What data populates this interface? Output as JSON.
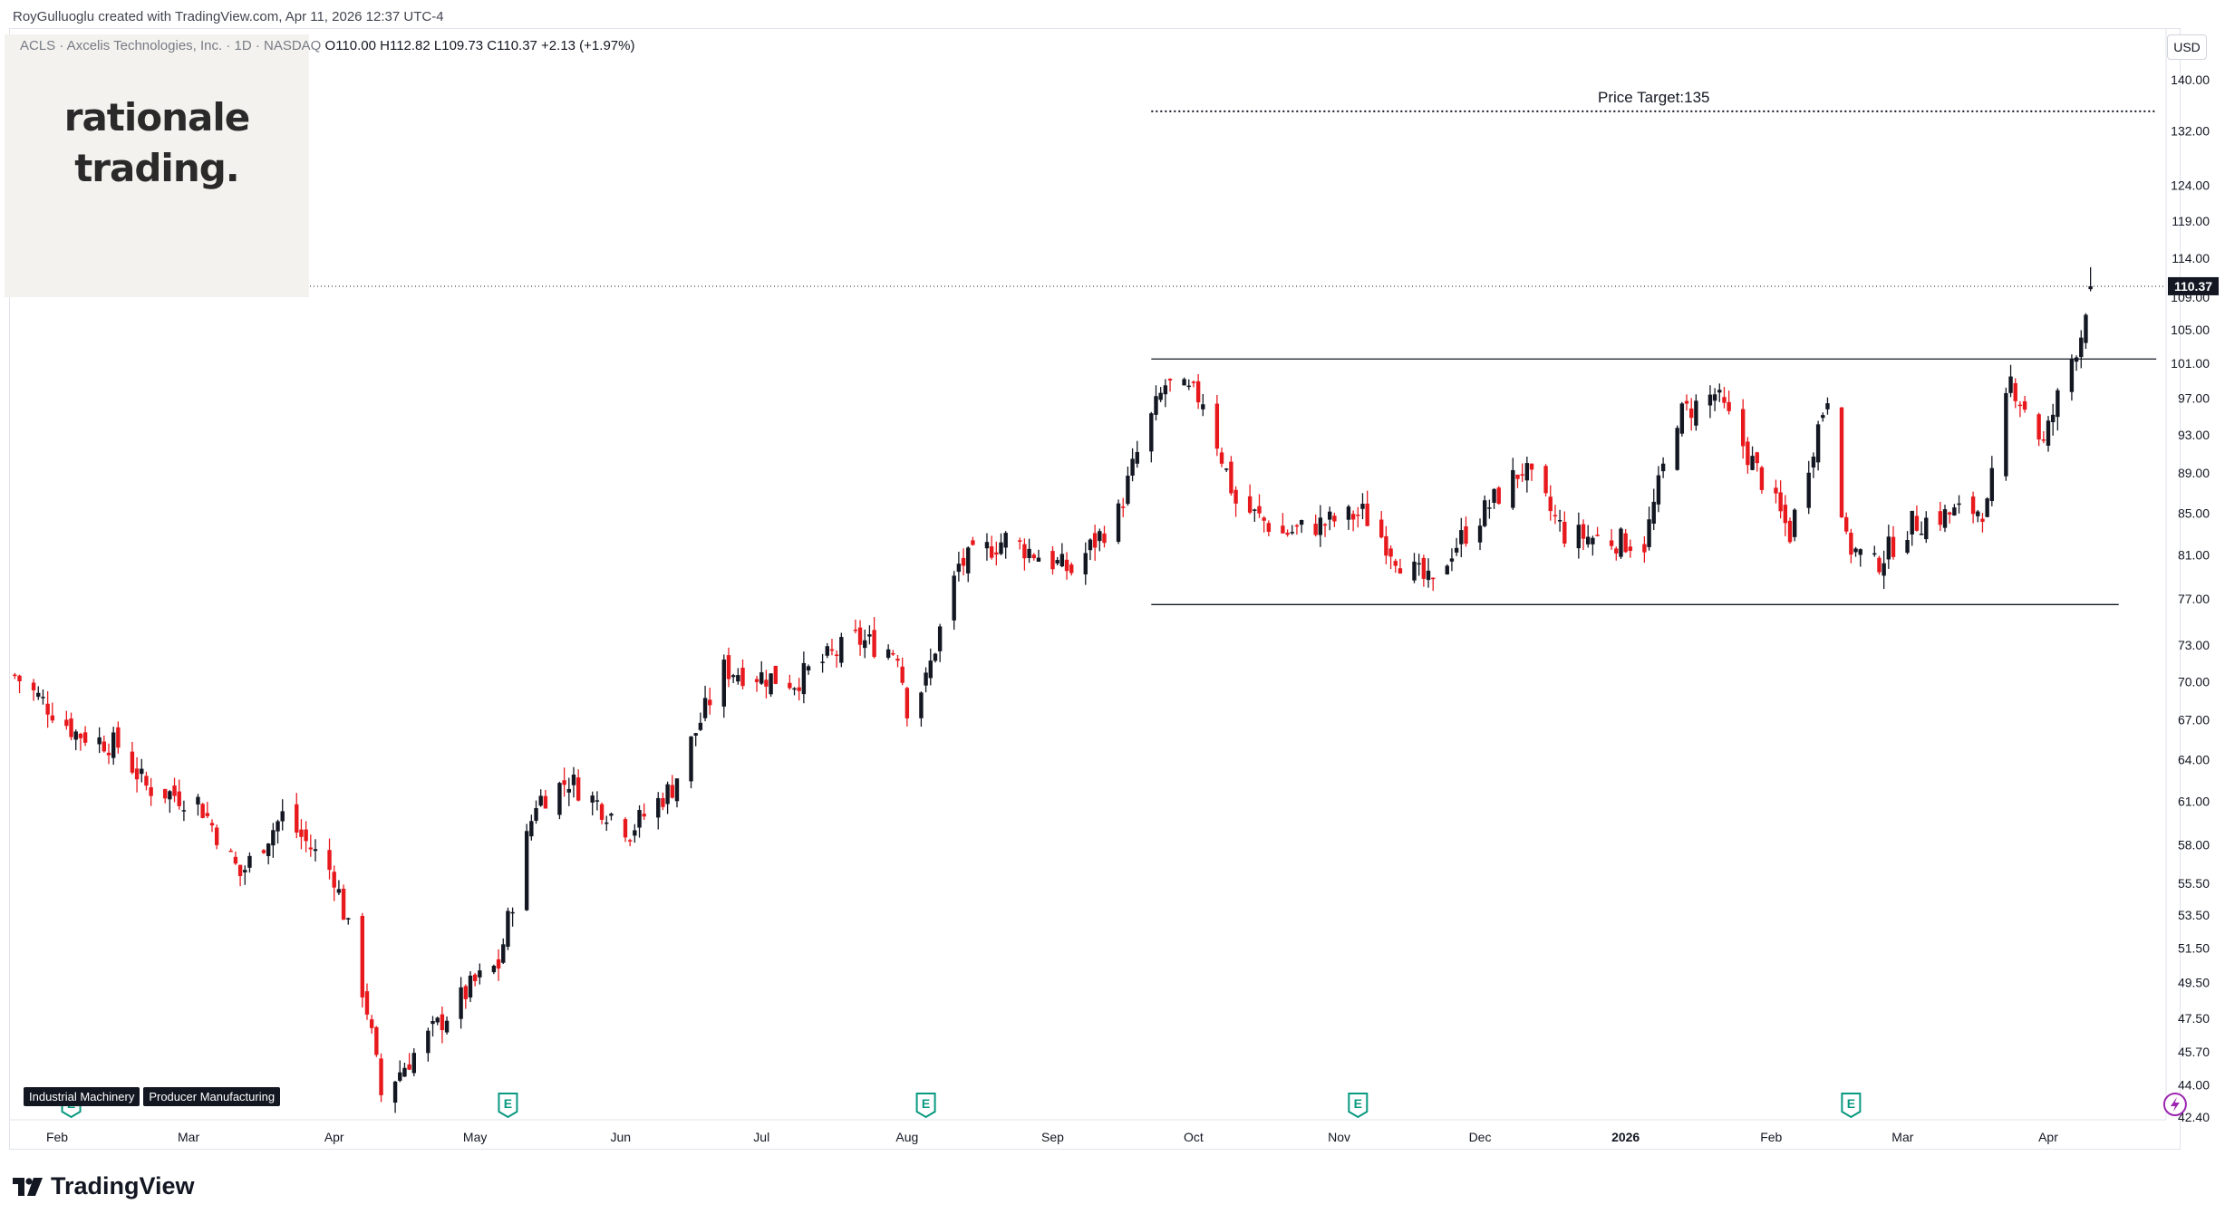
{
  "header": {
    "credit": "RoyGulluoglu created with TradingView.com, Apr 11, 2026 12:37 UTC-4",
    "symbol": "ACLS · Axcelis Technologies, Inc. · 1D · NASDAQ",
    "ohlc": "O110.00  H112.82  L109.73  C110.37  +2.13 (+1.97%)"
  },
  "branding": {
    "logo_line1": "rationale",
    "logo_line2": "trading.",
    "footer": "TradingView"
  },
  "toolbar": {
    "currency_button": "USD"
  },
  "tags": [
    "Industrial Machinery",
    "Producer Manufacturing"
  ],
  "icons": [
    "earnings-icon",
    "dividend-icon",
    "tradingview-logo-icon"
  ],
  "colors": {
    "up": "#131722",
    "down": "#e8191d",
    "line": "#131722",
    "last_price_bg": "#131722"
  },
  "chart_data": {
    "type": "candlestick",
    "symbol": "ACLS",
    "interval": "1D",
    "last_price": 110.37,
    "last_price_label": "110.37",
    "y_ticks": [
      140.0,
      132.0,
      124.0,
      119.0,
      114.0,
      109.0,
      105.0,
      101.0,
      97.0,
      93.0,
      89.0,
      85.0,
      81.0,
      77.0,
      73.0,
      70.0,
      67.0,
      64.0,
      61.0,
      58.0,
      55.5,
      53.5,
      51.5,
      49.5,
      47.5,
      45.7,
      44.0,
      42.4
    ],
    "y_tick_labels": [
      "140.00",
      "132.00",
      "124.00",
      "119.00",
      "114.00",
      "109.00",
      "105.00",
      "101.00",
      "97.00",
      "93.00",
      "89.00",
      "85.00",
      "81.00",
      "77.00",
      "73.00",
      "70.00",
      "67.00",
      "64.00",
      "61.00",
      "58.00",
      "55.50",
      "53.50",
      "51.50",
      "49.50",
      "47.50",
      "45.70",
      "44.00",
      "42.40"
    ],
    "x_ticks": [
      "Feb",
      "Mar",
      "Apr",
      "May",
      "Jun",
      "Jul",
      "Aug",
      "Sep",
      "Oct",
      "Nov",
      "Dec",
      "2026",
      "Feb",
      "Mar",
      "Apr"
    ],
    "x_tick_months": [
      "2025-02",
      "2025-03",
      "2025-04",
      "2025-05",
      "2025-06",
      "2025-07",
      "2025-08",
      "2025-09",
      "2025-10",
      "2025-11",
      "2025-12",
      "2026-01",
      "2026-02",
      "2026-03",
      "2026-04"
    ],
    "scale": "log",
    "anchors": [
      [
        "2025-01-23",
        70.5
      ],
      [
        "2025-02-05",
        66.0
      ],
      [
        "2025-02-14",
        65.0
      ],
      [
        "2025-02-20",
        62.0
      ],
      [
        "2025-03-03",
        61.0
      ],
      [
        "2025-03-12",
        56.0
      ],
      [
        "2025-03-21",
        60.0
      ],
      [
        "2025-04-01",
        56.0
      ],
      [
        "2025-04-08",
        48.0
      ],
      [
        "2025-04-11",
        43.5
      ],
      [
        "2025-04-21",
        46.5
      ],
      [
        "2025-05-01",
        49.5
      ],
      [
        "2025-05-06",
        50.5
      ],
      [
        "2025-05-14",
        61.0
      ],
      [
        "2025-05-21",
        62.5
      ],
      [
        "2025-06-03",
        59.0
      ],
      [
        "2025-06-12",
        62.0
      ],
      [
        "2025-06-23",
        71.0
      ],
      [
        "2025-07-08",
        70.0
      ],
      [
        "2025-07-21",
        73.5
      ],
      [
        "2025-07-30",
        72.5
      ],
      [
        "2025-08-01",
        68.0
      ],
      [
        "2025-08-05",
        70.0
      ],
      [
        "2025-08-12",
        80.0
      ],
      [
        "2025-08-22",
        82.5
      ],
      [
        "2025-09-05",
        79.5
      ],
      [
        "2025-09-15",
        85.0
      ],
      [
        "2025-09-19",
        91.0
      ],
      [
        "2025-09-25",
        98.5
      ],
      [
        "2025-10-03",
        97.0
      ],
      [
        "2025-10-10",
        86.0
      ],
      [
        "2025-10-20",
        83.0
      ],
      [
        "2025-11-06",
        85.0
      ],
      [
        "2025-11-14",
        80.5
      ],
      [
        "2025-11-21",
        78.0
      ],
      [
        "2025-11-25",
        81.5
      ],
      [
        "2025-12-10",
        89.5
      ],
      [
        "2025-12-19",
        83.0
      ],
      [
        "2026-01-05",
        82.0
      ],
      [
        "2026-01-12",
        95.0
      ],
      [
        "2026-01-20",
        97.5
      ],
      [
        "2026-01-27",
        91.0
      ],
      [
        "2026-02-05",
        83.0
      ],
      [
        "2026-02-13",
        97.5
      ],
      [
        "2026-02-17",
        82.0
      ],
      [
        "2026-02-23",
        80.0
      ],
      [
        "2026-03-03",
        84.0
      ],
      [
        "2026-03-12",
        85.0
      ],
      [
        "2026-03-19",
        85.5
      ],
      [
        "2026-03-24",
        99.0
      ],
      [
        "2026-03-31",
        92.0
      ],
      [
        "2026-04-03",
        97.0
      ],
      [
        "2026-04-08",
        104.5
      ],
      [
        "2026-04-09",
        108.0
      ],
      [
        "2026-04-10",
        110.37
      ]
    ],
    "price_target": {
      "label": "Price Target:135",
      "value": 135,
      "from": "2025-09-22",
      "to": "2026-04-24"
    },
    "range_lines": [
      {
        "name": "resistance",
        "value": 101.5,
        "from": "2025-09-22",
        "to": "2026-04-24"
      },
      {
        "name": "support",
        "value": 76.5,
        "from": "2025-09-22",
        "to": "2026-04-16"
      }
    ],
    "events": [
      {
        "type": "earnings",
        "date": "2025-02-04",
        "label": "E"
      },
      {
        "type": "earnings",
        "date": "2025-05-08",
        "label": "E"
      },
      {
        "type": "earnings",
        "date": "2025-08-05",
        "label": "E"
      },
      {
        "type": "earnings",
        "date": "2025-11-05",
        "label": "E"
      },
      {
        "type": "earnings",
        "date": "2026-02-18",
        "label": "E"
      },
      {
        "type": "dividend",
        "date": "2026-04-28",
        "label": ""
      }
    ],
    "grid": false
  }
}
